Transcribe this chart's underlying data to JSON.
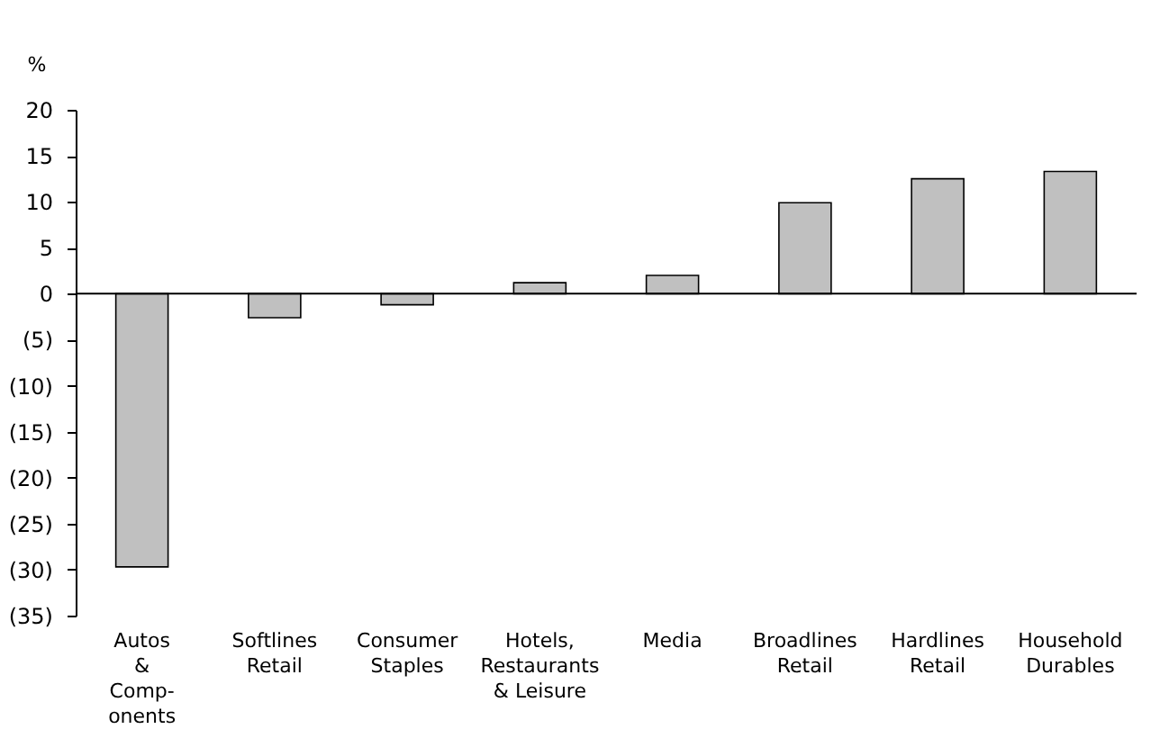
{
  "chart_data": {
    "type": "bar",
    "ylabel": "%",
    "categories": [
      "Autos\n&\nComp-\nonents",
      "Softlines\nRetail",
      "Consumer\nStaples",
      "Hotels,\nRestaurants\n& Leisure",
      "Media",
      "Broadlines\nRetail",
      "Hardlines\nRetail",
      "Household\nDurables"
    ],
    "values": [
      -29.7,
      -2.6,
      -1.2,
      1.2,
      2.0,
      9.9,
      12.5,
      13.3
    ],
    "color": "#c0c0c0",
    "ylim": [
      -35,
      20
    ],
    "yticks": [
      {
        "value": -35,
        "label": "(35)"
      },
      {
        "value": -30,
        "label": "(30)"
      },
      {
        "value": -25,
        "label": "(25)"
      },
      {
        "value": -20,
        "label": "(20)"
      },
      {
        "value": -15,
        "label": "(15)"
      },
      {
        "value": -10,
        "label": "(10)"
      },
      {
        "value": -5,
        "label": "(5)"
      },
      0,
      5,
      10,
      15,
      20
    ],
    "ref_lines": [
      {
        "axis": "y",
        "value": 0,
        "color": "#000000",
        "line_style": "solid"
      }
    ],
    "grid": false
  }
}
